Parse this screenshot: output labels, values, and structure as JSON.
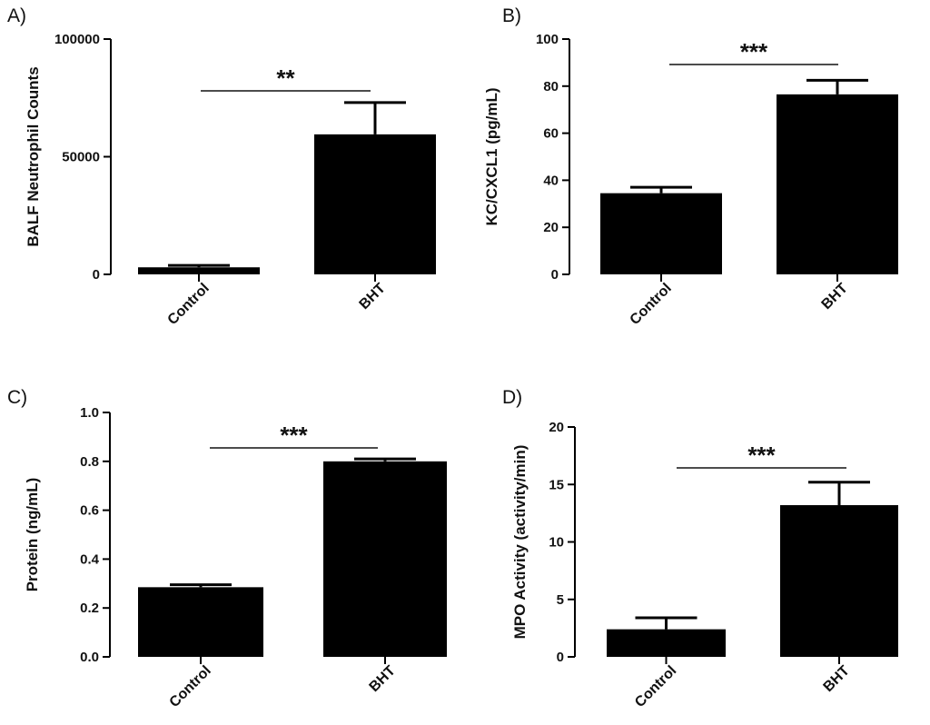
{
  "chart_data": [
    {
      "type": "bar",
      "panel": "A)",
      "categories": [
        "Control",
        "BHT"
      ],
      "values": [
        3000,
        59500
      ],
      "errors": [
        800,
        13500
      ],
      "ylabel": "BALF Neutrophil Counts",
      "ylim": [
        0,
        100000
      ],
      "yticks": [
        0,
        50000,
        100000
      ],
      "ytick_labels": [
        "0",
        "50000",
        "100000"
      ],
      "significance": "**",
      "colors": {
        "bar": "#000000",
        "axis": "#000000"
      }
    },
    {
      "type": "bar",
      "panel": "B)",
      "categories": [
        "Control",
        "BHT"
      ],
      "values": [
        34.5,
        76.5
      ],
      "errors": [
        2.5,
        6
      ],
      "ylabel": "KC/CXCL1 (pg/mL)",
      "ylim": [
        0,
        100
      ],
      "yticks": [
        0,
        20,
        40,
        60,
        80,
        100
      ],
      "ytick_labels": [
        "0",
        "20",
        "40",
        "60",
        "80",
        "100"
      ],
      "significance": "***",
      "colors": {
        "bar": "#000000",
        "axis": "#000000"
      }
    },
    {
      "type": "bar",
      "panel": "C)",
      "categories": [
        "Control",
        "BHT"
      ],
      "values": [
        0.285,
        0.8
      ],
      "errors": [
        0.01,
        0.01
      ],
      "ylabel": "Protein (ng/mL)",
      "ylim": [
        0,
        1
      ],
      "yticks": [
        0,
        0.2,
        0.4,
        0.6,
        0.8,
        1.0
      ],
      "ytick_labels": [
        "0.0",
        "0.2",
        "0.4",
        "0.6",
        "0.8",
        "1.0"
      ],
      "significance": "***",
      "colors": {
        "bar": "#000000",
        "axis": "#000000"
      }
    },
    {
      "type": "bar",
      "panel": "D)",
      "categories": [
        "Control",
        "BHT"
      ],
      "values": [
        2.4,
        13.2
      ],
      "errors": [
        1.0,
        2.0
      ],
      "ylabel": "MPO Activity (activity/min)",
      "ylim": [
        0,
        20
      ],
      "yticks": [
        0,
        5,
        10,
        15,
        20
      ],
      "ytick_labels": [
        "0",
        "5",
        "10",
        "15",
        "20"
      ],
      "significance": "***",
      "colors": {
        "bar": "#000000",
        "axis": "#000000"
      }
    }
  ]
}
